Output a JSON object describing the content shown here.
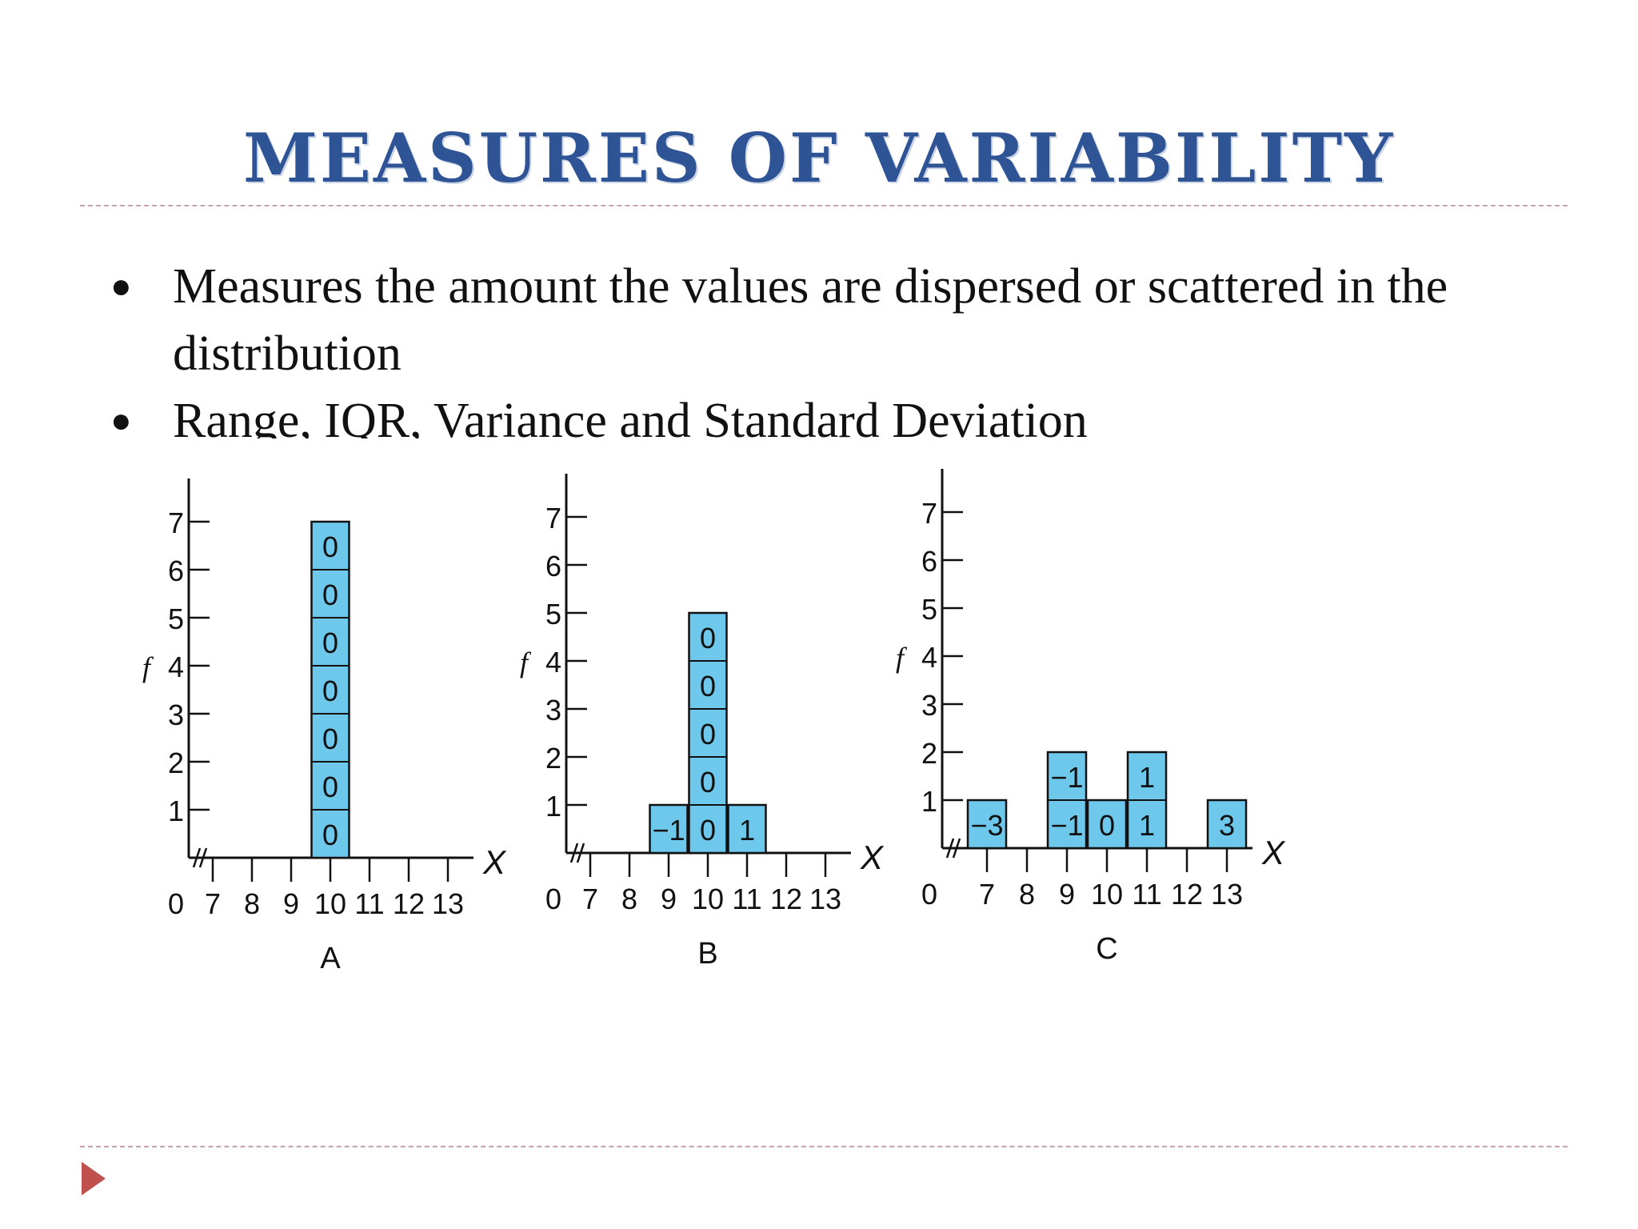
{
  "slide": {
    "title": "MEASURES OF VARIABILITY",
    "bullets": [
      "Measures the amount the values are dispersed or scattered in the distribution",
      "Range, IQR, Variance and Standard Deviation"
    ]
  },
  "chart_data": [
    {
      "type": "bar",
      "title": "A",
      "xlabel": "X",
      "ylabel": "f",
      "x_ticks": [
        "0",
        "7",
        "8",
        "9",
        "10",
        "11",
        "12",
        "13"
      ],
      "y_ticks": [
        "1",
        "2",
        "3",
        "4",
        "5",
        "6",
        "7"
      ],
      "ylim": [
        0,
        7
      ],
      "axis_break": true,
      "bars": [
        {
          "x": 10,
          "count": 7,
          "labels": [
            "0",
            "0",
            "0",
            "0",
            "0",
            "0",
            "0"
          ]
        }
      ],
      "fill_color": "#6ec8ec"
    },
    {
      "type": "bar",
      "title": "B",
      "xlabel": "X",
      "ylabel": "f",
      "x_ticks": [
        "0",
        "7",
        "8",
        "9",
        "10",
        "11",
        "12",
        "13"
      ],
      "y_ticks": [
        "1",
        "2",
        "3",
        "4",
        "5",
        "6",
        "7"
      ],
      "ylim": [
        0,
        7
      ],
      "axis_break": true,
      "bars": [
        {
          "x": 9,
          "count": 1,
          "labels": [
            "−1"
          ]
        },
        {
          "x": 10,
          "count": 5,
          "labels": [
            "0",
            "0",
            "0",
            "0",
            "0"
          ]
        },
        {
          "x": 11,
          "count": 1,
          "labels": [
            "1"
          ]
        }
      ],
      "fill_color": "#6ec8ec"
    },
    {
      "type": "bar",
      "title": "C",
      "xlabel": "X",
      "ylabel": "f",
      "x_ticks": [
        "0",
        "7",
        "8",
        "9",
        "10",
        "11",
        "12",
        "13"
      ],
      "y_ticks": [
        "1",
        "2",
        "3",
        "4",
        "5",
        "6",
        "7"
      ],
      "ylim": [
        0,
        7
      ],
      "axis_break": true,
      "bars": [
        {
          "x": 7,
          "count": 1,
          "labels": [
            "−3"
          ]
        },
        {
          "x": 9,
          "count": 2,
          "labels": [
            "−1",
            "−1"
          ]
        },
        {
          "x": 10,
          "count": 1,
          "labels": [
            "0"
          ]
        },
        {
          "x": 11,
          "count": 2,
          "labels": [
            "1",
            "1"
          ]
        },
        {
          "x": 13,
          "count": 1,
          "labels": [
            "3"
          ]
        }
      ],
      "fill_color": "#6ec8ec"
    }
  ]
}
